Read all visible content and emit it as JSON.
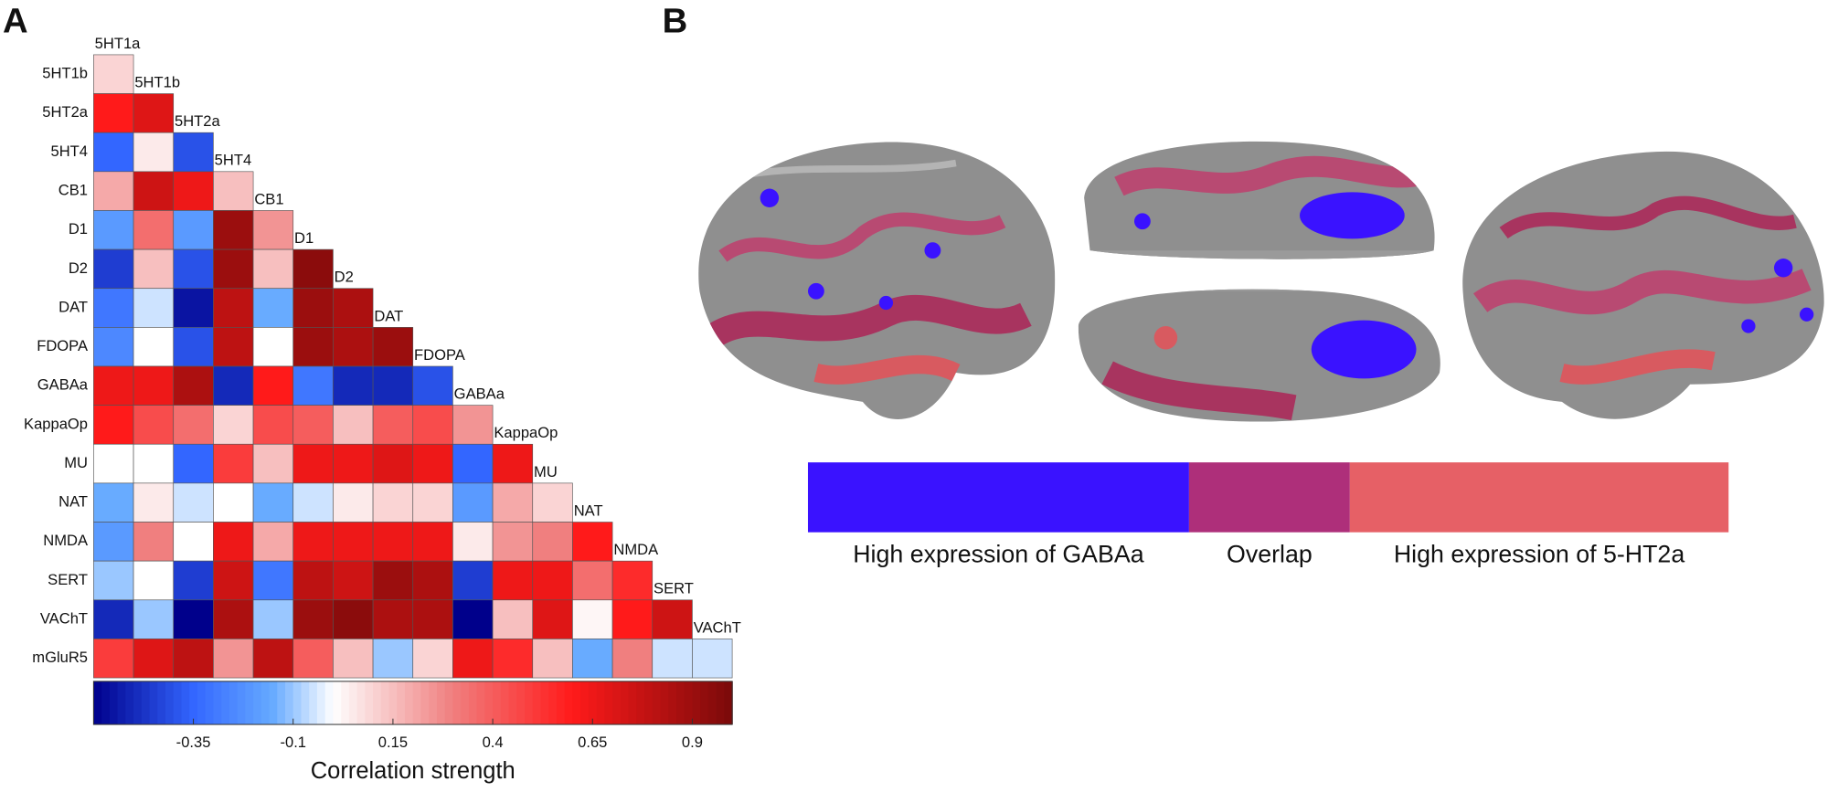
{
  "chart_data": {
    "type": "heatmap",
    "panel_label": "A",
    "rows": [
      "5HT1b",
      "5HT2a",
      "5HT4",
      "CB1",
      "D1",
      "D2",
      "DAT",
      "FDOPA",
      "GABAa",
      "KappaOp",
      "MU",
      "NAT",
      "NMDA",
      "SERT",
      "VAChT",
      "mGluR5"
    ],
    "columns": [
      "5HT1a",
      "5HT1b",
      "5HT2a",
      "5HT4",
      "CB1",
      "D1",
      "D2",
      "DAT",
      "FDOPA",
      "GABAa",
      "KappaOp",
      "MU",
      "NAT",
      "NMDA",
      "SERT",
      "VAChT"
    ],
    "values": [
      [
        0.1,
        null,
        null,
        null,
        null,
        null,
        null,
        null,
        null,
        null,
        null,
        null,
        null,
        null,
        null,
        null
      ],
      [
        0.6,
        0.7,
        null,
        null,
        null,
        null,
        null,
        null,
        null,
        null,
        null,
        null,
        null,
        null,
        null,
        null
      ],
      [
        -0.35,
        0.05,
        -0.4,
        null,
        null,
        null,
        null,
        null,
        null,
        null,
        null,
        null,
        null,
        null,
        null,
        null
      ],
      [
        0.2,
        0.75,
        0.65,
        0.15,
        null,
        null,
        null,
        null,
        null,
        null,
        null,
        null,
        null,
        null,
        null,
        null
      ],
      [
        -0.2,
        0.35,
        -0.2,
        0.9,
        0.25,
        null,
        null,
        null,
        null,
        null,
        null,
        null,
        null,
        null,
        null,
        null
      ],
      [
        -0.45,
        0.15,
        -0.4,
        0.9,
        0.15,
        0.95,
        null,
        null,
        null,
        null,
        null,
        null,
        null,
        null,
        null,
        null
      ],
      [
        -0.3,
        -0.05,
        -0.55,
        0.8,
        -0.15,
        0.9,
        0.85,
        null,
        null,
        null,
        null,
        null,
        null,
        null,
        null,
        null
      ],
      [
        -0.25,
        0.0,
        -0.4,
        0.8,
        0.0,
        0.9,
        0.85,
        0.9,
        null,
        null,
        null,
        null,
        null,
        null,
        null,
        null
      ],
      [
        0.65,
        0.65,
        0.85,
        -0.5,
        0.6,
        -0.3,
        -0.5,
        -0.5,
        -0.4,
        null,
        null,
        null,
        null,
        null,
        null,
        null
      ],
      [
        0.6,
        0.45,
        0.35,
        0.1,
        0.45,
        0.4,
        0.15,
        0.4,
        0.45,
        0.25,
        null,
        null,
        null,
        null,
        null,
        null
      ],
      [
        0.0,
        0.0,
        -0.35,
        0.5,
        0.15,
        0.65,
        0.65,
        0.7,
        0.65,
        -0.35,
        0.65,
        null,
        null,
        null,
        null,
        null
      ],
      [
        -0.15,
        0.05,
        -0.05,
        0.0,
        -0.15,
        -0.05,
        0.05,
        0.1,
        0.1,
        -0.2,
        0.2,
        0.1,
        null,
        null,
        null,
        null
      ],
      [
        -0.2,
        0.3,
        0.0,
        0.65,
        0.2,
        0.65,
        0.65,
        0.65,
        0.65,
        0.05,
        0.25,
        0.3,
        0.6,
        null,
        null,
        null
      ],
      [
        -0.1,
        0.0,
        -0.45,
        0.75,
        -0.3,
        0.8,
        0.75,
        0.9,
        0.85,
        -0.45,
        0.65,
        0.65,
        0.35,
        0.55,
        null,
        null
      ],
      [
        -0.5,
        -0.1,
        -0.6,
        0.85,
        -0.1,
        0.9,
        0.95,
        0.85,
        0.85,
        -0.6,
        0.15,
        0.7,
        0.02,
        0.6,
        0.75,
        null
      ],
      [
        0.5,
        0.7,
        0.8,
        0.25,
        0.8,
        0.4,
        0.15,
        -0.1,
        0.1,
        0.65,
        0.55,
        0.15,
        -0.15,
        0.3,
        -0.05,
        -0.05
      ]
    ],
    "clim": [
      -0.6,
      1.0
    ],
    "cticks": [
      -0.35,
      -0.1,
      0.15,
      0.4,
      0.65,
      0.9
    ],
    "colorbar_label": "Correlation strength"
  },
  "panel_b": {
    "label": "B",
    "legend": [
      {
        "label": "High expression of GABAa",
        "color": "#3a12ff"
      },
      {
        "label": "Overlap",
        "color": "#ae2f7a"
      },
      {
        "label": "High expression of 5-HT2a",
        "color": "#e66066"
      }
    ]
  }
}
